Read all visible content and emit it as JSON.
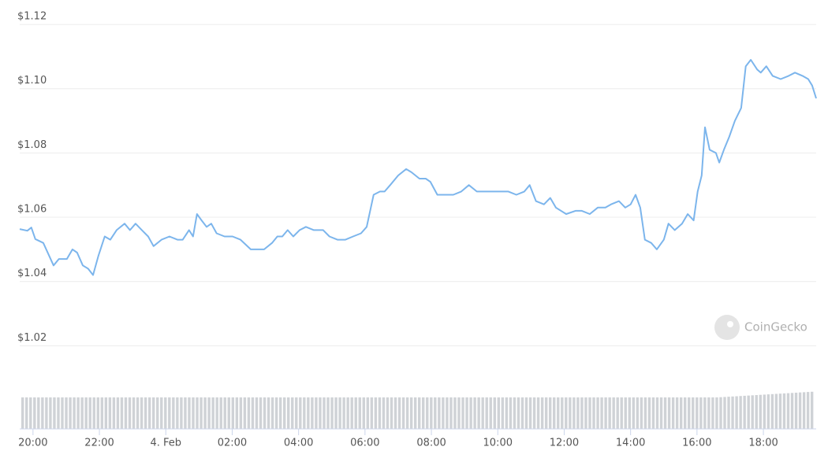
{
  "chart_data": {
    "type": "line",
    "xlim": [
      19.6,
      43.59
    ],
    "xticks": [
      {
        "value": 20,
        "label": "20:00"
      },
      {
        "value": 22,
        "label": "22:00"
      },
      {
        "value": 24,
        "label": "4. Feb"
      },
      {
        "value": 26,
        "label": "02:00"
      },
      {
        "value": 28,
        "label": "04:00"
      },
      {
        "value": 30,
        "label": "06:00"
      },
      {
        "value": 32,
        "label": "08:00"
      },
      {
        "value": 34,
        "label": "10:00"
      },
      {
        "value": 36,
        "label": "12:00"
      },
      {
        "value": 38,
        "label": "14:00"
      },
      {
        "value": 40,
        "label": "16:00"
      },
      {
        "value": 42,
        "label": "18:00"
      }
    ],
    "ylim": [
      1.0,
      1.121
    ],
    "yticks": [
      {
        "value": 1.02,
        "label": "$1.02"
      },
      {
        "value": 1.04,
        "label": "$1.04"
      },
      {
        "value": 1.06,
        "label": "$1.06"
      },
      {
        "value": 1.08,
        "label": "$1.08"
      },
      {
        "value": 1.1,
        "label": "$1.10"
      },
      {
        "value": 1.12,
        "label": "$1.12"
      }
    ],
    "grid": true,
    "watermark": "CoinGecko",
    "x": [
      19.6,
      19.83,
      19.95,
      20.07,
      20.31,
      20.62,
      20.78,
      21.02,
      21.19,
      21.33,
      21.5,
      21.66,
      21.81,
      21.97,
      22.16,
      22.33,
      22.52,
      22.76,
      22.92,
      23.09,
      23.28,
      23.47,
      23.63,
      23.87,
      24.11,
      24.35,
      24.51,
      24.7,
      24.82,
      24.94,
      25.08,
      25.23,
      25.37,
      25.53,
      25.77,
      26.01,
      26.25,
      26.56,
      26.72,
      26.96,
      27.2,
      27.36,
      27.51,
      27.67,
      27.84,
      28.03,
      28.22,
      28.46,
      28.74,
      28.93,
      29.17,
      29.41,
      29.64,
      29.88,
      30.05,
      30.26,
      30.45,
      30.59,
      30.76,
      31.0,
      31.24,
      31.4,
      31.64,
      31.83,
      31.97,
      32.18,
      32.42,
      32.66,
      32.9,
      33.13,
      33.37,
      33.61,
      33.85,
      34.09,
      34.32,
      34.56,
      34.8,
      34.96,
      35.15,
      35.39,
      35.58,
      35.75,
      36.06,
      36.34,
      36.53,
      36.77,
      37.01,
      37.24,
      37.41,
      37.65,
      37.84,
      38.0,
      38.15,
      38.29,
      38.43,
      38.62,
      38.79,
      39.0,
      39.14,
      39.33,
      39.55,
      39.72,
      39.9,
      40.02,
      40.14,
      40.24,
      40.38,
      40.57,
      40.67,
      40.81,
      40.97,
      41.14,
      41.33,
      41.47,
      41.62,
      41.81,
      41.92,
      42.09,
      42.28,
      42.52,
      42.76,
      42.95,
      43.18,
      43.35,
      43.47,
      43.59
    ],
    "series": [
      {
        "color": "#7cb5ec",
        "values": [
          1.0563,
          1.0558,
          1.0568,
          1.0532,
          1.052,
          1.045,
          1.047,
          1.047,
          1.05,
          1.049,
          1.045,
          1.044,
          1.042,
          1.048,
          1.054,
          1.053,
          1.056,
          1.058,
          1.056,
          1.058,
          1.056,
          1.054,
          1.051,
          1.053,
          1.054,
          1.053,
          1.053,
          1.056,
          1.054,
          1.061,
          1.059,
          1.057,
          1.058,
          1.055,
          1.054,
          1.054,
          1.053,
          1.05,
          1.05,
          1.05,
          1.052,
          1.054,
          1.054,
          1.056,
          1.054,
          1.056,
          1.057,
          1.056,
          1.056,
          1.054,
          1.053,
          1.053,
          1.054,
          1.055,
          1.057,
          1.067,
          1.068,
          1.068,
          1.07,
          1.073,
          1.075,
          1.074,
          1.072,
          1.072,
          1.071,
          1.067,
          1.067,
          1.067,
          1.068,
          1.07,
          1.068,
          1.068,
          1.068,
          1.068,
          1.068,
          1.067,
          1.068,
          1.07,
          1.065,
          1.064,
          1.066,
          1.063,
          1.061,
          1.062,
          1.062,
          1.061,
          1.063,
          1.063,
          1.064,
          1.065,
          1.063,
          1.064,
          1.067,
          1.063,
          1.053,
          1.052,
          1.05,
          1.053,
          1.058,
          1.056,
          1.058,
          1.061,
          1.059,
          1.068,
          1.073,
          1.088,
          1.081,
          1.08,
          1.077,
          1.081,
          1.085,
          1.09,
          1.094,
          1.107,
          1.109,
          1.106,
          1.105,
          1.107,
          1.104,
          1.103,
          1.104,
          1.105,
          1.104,
          1.103,
          1.101,
          1.097
        ]
      }
    ]
  }
}
